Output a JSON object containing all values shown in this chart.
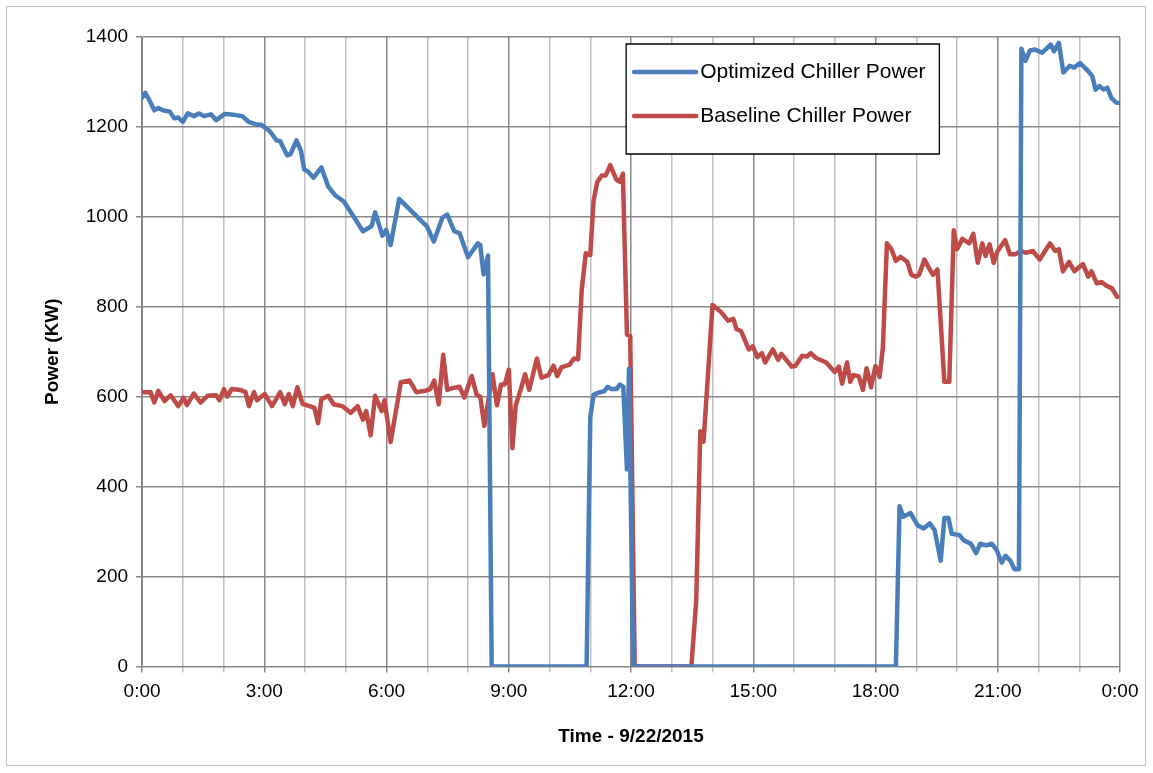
{
  "chart_data": {
    "type": "line",
    "xlabel": "Time - 9/22/2015",
    "ylabel": "Power (KW)",
    "xlim": [
      0,
      24
    ],
    "ylim": [
      0,
      1400
    ],
    "xticks": [
      {
        "value": 0,
        "label": "0:00"
      },
      {
        "value": 1,
        "label": null
      },
      {
        "value": 2,
        "label": null
      },
      {
        "value": 3,
        "label": "3:00"
      },
      {
        "value": 4,
        "label": null
      },
      {
        "value": 5,
        "label": null
      },
      {
        "value": 6,
        "label": "6:00"
      },
      {
        "value": 7,
        "label": null
      },
      {
        "value": 8,
        "label": null
      },
      {
        "value": 9,
        "label": "9:00"
      },
      {
        "value": 10,
        "label": null
      },
      {
        "value": 11,
        "label": null
      },
      {
        "value": 12,
        "label": "12:00"
      },
      {
        "value": 13,
        "label": null
      },
      {
        "value": 14,
        "label": null
      },
      {
        "value": 15,
        "label": "15:00"
      },
      {
        "value": 16,
        "label": null
      },
      {
        "value": 17,
        "label": null
      },
      {
        "value": 18,
        "label": "18:00"
      },
      {
        "value": 19,
        "label": null
      },
      {
        "value": 20,
        "label": null
      },
      {
        "value": 21,
        "label": "21:00"
      },
      {
        "value": 22,
        "label": null
      },
      {
        "value": 23,
        "label": null
      },
      {
        "value": 24,
        "label": "0:00"
      }
    ],
    "yticks": [
      0,
      200,
      400,
      600,
      800,
      1000,
      1200,
      1400
    ],
    "grid": true,
    "legend": "top right",
    "marker": "none",
    "line_style": "solid",
    "series": [
      {
        "name": "Optimized Chiller Power",
        "color": "#4a7ebb",
        "x": [
          0,
          0.08,
          0.17,
          0.3,
          0.4,
          0.51,
          0.68,
          0.79,
          0.89,
          1.0,
          1.12,
          1.27,
          1.4,
          1.52,
          1.69,
          1.82,
          2.03,
          2.24,
          2.46,
          2.62,
          2.79,
          2.92,
          3.13,
          3.3,
          3.39,
          3.56,
          3.64,
          3.79,
          3.9,
          3.98,
          4.06,
          4.21,
          4.4,
          4.57,
          4.74,
          4.95,
          5.21,
          5.42,
          5.63,
          5.72,
          5.9,
          5.99,
          6.1,
          6.31,
          6.56,
          6.82,
          6.99,
          7.16,
          7.37,
          7.49,
          7.66,
          7.79,
          8.0,
          8.24,
          8.3,
          8.38,
          8.49,
          8.58,
          10.91,
          11.0,
          11.08,
          11.2,
          11.34,
          11.43,
          11.51,
          11.64,
          11.73,
          11.81,
          11.9,
          11.95,
          12.05,
          18.5,
          18.59,
          18.68,
          18.86,
          19.03,
          19.18,
          19.33,
          19.45,
          19.6,
          19.69,
          19.79,
          19.87,
          20.06,
          20.17,
          20.34,
          20.47,
          20.57,
          20.72,
          20.85,
          20.97,
          21.1,
          21.19,
          21.31,
          21.41,
          21.52,
          21.58,
          21.68,
          21.79,
          21.92,
          22.09,
          22.3,
          22.38,
          22.5,
          22.61,
          22.77,
          22.87,
          23.02,
          23.19,
          23.32,
          23.4,
          23.49,
          23.6,
          23.69,
          23.79,
          23.91,
          24.0
        ],
        "values": [
          1265,
          1276,
          1261,
          1237,
          1242,
          1237,
          1234,
          1219,
          1221,
          1211,
          1230,
          1224,
          1230,
          1224,
          1228,
          1215,
          1229,
          1227,
          1224,
          1211,
          1206,
          1205,
          1191,
          1170,
          1168,
          1137,
          1139,
          1170,
          1147,
          1105,
          1102,
          1087,
          1110,
          1067,
          1048,
          1034,
          998,
          968,
          979,
          1010,
          958,
          971,
          937,
          1040,
          1017,
          994,
          979,
          945,
          998,
          1005,
          968,
          964,
          910,
          941,
          937,
          872,
          914,
          0,
          0,
          554,
          604,
          609,
          612,
          622,
          617,
          617,
          627,
          622,
          438,
          662,
          0,
          0,
          356,
          333,
          341,
          314,
          307,
          318,
          303,
          235,
          330,
          330,
          295,
          292,
          280,
          273,
          252,
          273,
          269,
          273,
          259,
          231,
          246,
          235,
          216,
          216,
          1374,
          1347,
          1370,
          1372,
          1365,
          1383,
          1368,
          1387,
          1321,
          1336,
          1332,
          1342,
          1327,
          1313,
          1283,
          1291,
          1283,
          1287,
          1264,
          1254,
          1253
        ]
      },
      {
        "name": "Baseline Chiller Power",
        "color": "#be4b48",
        "x": [
          0.04,
          0.21,
          0.3,
          0.4,
          0.55,
          0.7,
          0.89,
          1.02,
          1.1,
          1.27,
          1.44,
          1.61,
          1.82,
          1.9,
          2.01,
          2.09,
          2.2,
          2.41,
          2.54,
          2.62,
          2.75,
          2.82,
          3.01,
          3.19,
          3.39,
          3.5,
          3.6,
          3.7,
          3.81,
          3.94,
          4.11,
          4.23,
          4.32,
          4.4,
          4.57,
          4.7,
          4.91,
          5.12,
          5.29,
          5.42,
          5.5,
          5.61,
          5.72,
          5.88,
          5.95,
          6.1,
          6.35,
          6.56,
          6.73,
          6.94,
          7.07,
          7.17,
          7.28,
          7.39,
          7.49,
          7.61,
          7.79,
          7.91,
          8.09,
          8.21,
          8.3,
          8.4,
          8.6,
          8.71,
          8.81,
          8.9,
          9.0,
          9.09,
          9.17,
          9.29,
          9.4,
          9.5,
          9.69,
          9.8,
          9.97,
          10.1,
          10.19,
          10.29,
          10.49,
          10.6,
          10.7,
          10.79,
          10.89,
          11.0,
          11.08,
          11.17,
          11.28,
          11.38,
          11.49,
          11.64,
          11.73,
          11.8,
          11.9,
          11.98,
          12.09,
          13.48,
          13.6,
          13.7,
          13.78,
          14.0,
          14.21,
          14.38,
          14.51,
          14.59,
          14.7,
          14.89,
          14.99,
          15.1,
          15.21,
          15.29,
          15.48,
          15.61,
          15.69,
          15.94,
          16.03,
          16.2,
          16.32,
          16.41,
          16.54,
          16.79,
          17.0,
          17.1,
          17.18,
          17.3,
          17.38,
          17.46,
          17.59,
          17.69,
          17.78,
          17.89,
          18.0,
          18.1,
          18.18,
          18.28,
          18.39,
          18.5,
          18.61,
          18.78,
          18.88,
          18.99,
          19.07,
          19.2,
          19.33,
          19.41,
          19.52,
          19.69,
          19.81,
          19.92,
          20.0,
          20.13,
          20.3,
          20.4,
          20.51,
          20.62,
          20.7,
          20.8,
          20.9,
          20.99,
          21.18,
          21.3,
          21.44,
          21.57,
          21.69,
          21.86,
          22.03,
          22.16,
          22.28,
          22.41,
          22.5,
          22.6,
          22.75,
          22.88,
          23.09,
          23.22,
          23.3,
          23.43,
          23.55,
          23.66,
          23.8,
          23.93
        ],
        "values": [
          610,
          610,
          587,
          613,
          590,
          603,
          579,
          598,
          581,
          607,
          587,
          602,
          603,
          592,
          617,
          600,
          617,
          615,
          610,
          579,
          610,
          592,
          606,
          579,
          610,
          583,
          606,
          579,
          621,
          584,
          579,
          575,
          541,
          594,
          602,
          583,
          579,
          564,
          579,
          549,
          568,
          514,
          602,
          568,
          592,
          499,
          632,
          636,
          610,
          613,
          617,
          636,
          583,
          693,
          615,
          619,
          622,
          598,
          646,
          604,
          600,
          535,
          650,
          581,
          627,
          627,
          660,
          485,
          581,
          615,
          650,
          615,
          685,
          642,
          648,
          669,
          646,
          665,
          671,
          685,
          683,
          838,
          919,
          915,
          1035,
          1077,
          1092,
          1092,
          1115,
          1083,
          1078,
          1096,
          738,
          735,
          0,
          0,
          146,
          523,
          500,
          804,
          788,
          769,
          773,
          750,
          746,
          705,
          712,
          688,
          697,
          676,
          705,
          682,
          695,
          667,
          668,
          691,
          689,
          697,
          686,
          676,
          655,
          667,
          629,
          676,
          633,
          648,
          645,
          615,
          663,
          621,
          668,
          644,
          708,
          941,
          928,
          902,
          911,
          900,
          871,
          867,
          871,
          905,
          883,
          871,
          883,
          633,
          633,
          970,
          928,
          951,
          941,
          962,
          898,
          941,
          913,
          939,
          898,
          923,
          948,
          917,
          917,
          924,
          920,
          924,
          905,
          924,
          941,
          924,
          928,
          879,
          900,
          879,
          895,
          867,
          879,
          852,
          855,
          847,
          841,
          822
        ]
      }
    ]
  }
}
